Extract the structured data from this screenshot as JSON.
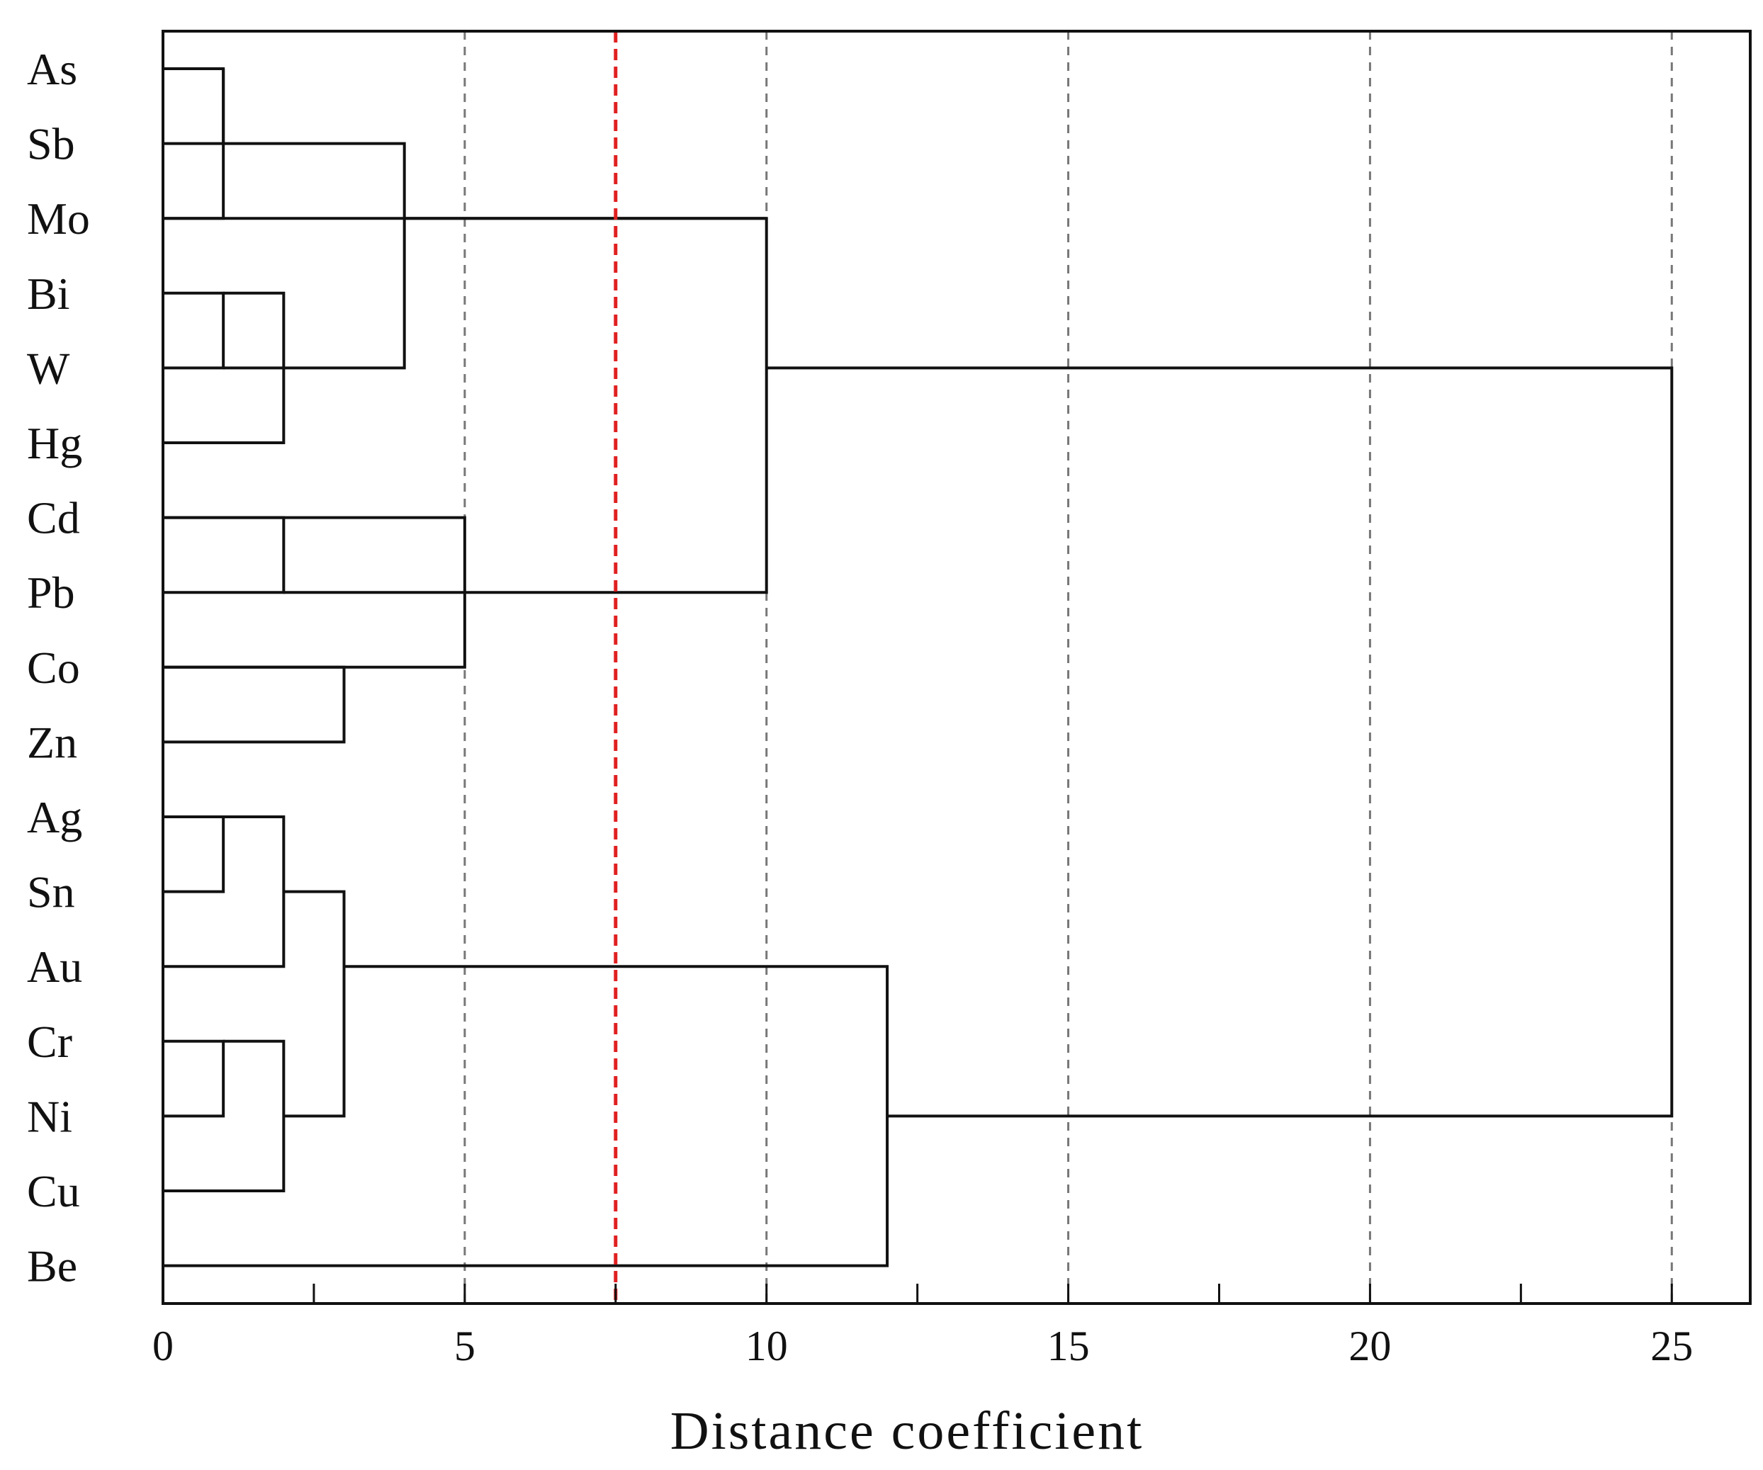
{
  "chart_data": {
    "type": "dendrogram",
    "xlabel": "Distance coefficient",
    "xlim": [
      0,
      26.3
    ],
    "x_ticks": [
      0,
      5,
      10,
      15,
      20,
      25
    ],
    "x_minor_ticks": [
      2.5,
      7.5,
      12.5,
      17.5,
      22.5
    ],
    "leaves": [
      "As",
      "Sb",
      "Mo",
      "Bi",
      "W",
      "Hg",
      "Cd",
      "Pb",
      "Co",
      "Zn",
      "Ag",
      "Sn",
      "Au",
      "Cr",
      "Ni",
      "Cu",
      "Be"
    ],
    "merges": [
      {
        "left": "As",
        "right": "Sb",
        "distance": 1
      },
      {
        "left": "Bi",
        "right": "W",
        "distance": 1
      },
      {
        "left": "Ag",
        "right": "Sn",
        "distance": 1
      },
      {
        "left": "Cr",
        "right": "Ni",
        "distance": 1
      },
      {
        "left": "Bi+W",
        "right": "Hg",
        "distance": 2
      },
      {
        "left": "Cd",
        "right": "Pb",
        "distance": 2
      },
      {
        "left": "Ag+Sn",
        "right": "Au",
        "distance": 2
      },
      {
        "left": "Cr+Ni",
        "right": "Cu",
        "distance": 2
      },
      {
        "left": "Co",
        "right": "Zn",
        "distance": 3
      },
      {
        "left": "Ag+Sn+Au",
        "right": "Cr+Ni+Cu",
        "distance": 3
      },
      {
        "left": "As+Sb",
        "right": "Bi+W+Hg",
        "distance": 4
      },
      {
        "left": "Cd+Pb",
        "right": "Co+Zn",
        "distance": 5
      },
      {
        "left": "As+Sb+Bi+W+Hg",
        "right": "Mo",
        "distance": 10,
        "note_hidden": true
      },
      {
        "left": "As..Mo",
        "right": "Cd+Pb+Co+Zn",
        "distance": 10
      },
      {
        "left": "Ag..Cu",
        "right": "Be",
        "distance": 12
      },
      {
        "left": "As..Zn",
        "right": "Ag..Be",
        "distance": 25
      }
    ],
    "grid": {
      "vertical_dashed": [
        5,
        10,
        15,
        20,
        25
      ],
      "color": "#777777"
    },
    "cutoff_line": {
      "x": 7.5,
      "color": "#e02020",
      "style": "dashed"
    },
    "line_color": "#111111"
  }
}
